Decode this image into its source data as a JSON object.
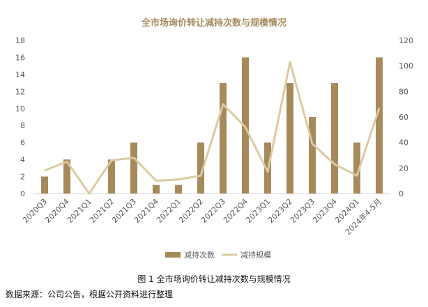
{
  "chart_data": {
    "type": "bar",
    "title": "全市场询价转让减持次数与规模情况",
    "categories": [
      "2020Q3",
      "2020Q4",
      "2021Q1",
      "2021Q2",
      "2021Q3",
      "2021Q4",
      "2022Q1",
      "2022Q2",
      "2022Q3",
      "2022Q4",
      "2023Q1",
      "2023Q2",
      "2023Q3",
      "2023Q4",
      "2024Q1",
      "2024年4-5月"
    ],
    "series": [
      {
        "name": "减持次数",
        "type": "bar",
        "axis": "left",
        "color": "#a68a5b",
        "values": [
          2,
          4,
          0,
          4,
          6,
          1,
          1,
          6,
          13,
          16,
          6,
          13,
          9,
          13,
          6,
          16
        ]
      },
      {
        "name": "减持规模",
        "type": "line",
        "axis": "right",
        "color": "#dccaa2",
        "values": [
          18,
          25,
          0,
          26,
          28,
          10,
          11,
          14,
          70,
          52,
          17,
          103,
          39,
          23,
          14,
          67
        ]
      }
    ],
    "ylim_left": [
      0,
      18
    ],
    "yticks_left": [
      "0",
      "2",
      "4",
      "6",
      "8",
      "10",
      "12",
      "14",
      "16",
      "18"
    ],
    "ylim_right": [
      0,
      120
    ],
    "yticks_right": [
      "0",
      "20",
      "40",
      "60",
      "80",
      "100",
      "120"
    ],
    "legend_position": "bottom",
    "grid": false,
    "xlabel": "",
    "ylabel": ""
  },
  "caption": "图 1 全市场询价转让减持次数与规模情况",
  "source": "数据来源：公司公告，根据公开资料进行整理"
}
